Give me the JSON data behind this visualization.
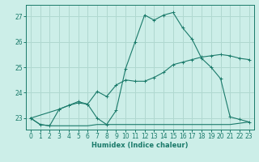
{
  "xlabel": "Humidex (Indice chaleur)",
  "bg_color": "#cceee8",
  "grid_color": "#b0d8d0",
  "line_color": "#1a7a6a",
  "xlim": [
    -0.5,
    23.5
  ],
  "ylim": [
    22.55,
    27.45
  ],
  "xticks": [
    0,
    1,
    2,
    3,
    4,
    5,
    6,
    7,
    8,
    9,
    10,
    11,
    12,
    13,
    14,
    15,
    16,
    17,
    18,
    19,
    20,
    21,
    22,
    23
  ],
  "yticks": [
    23,
    24,
    25,
    26,
    27
  ],
  "s1_x": [
    0,
    1,
    2,
    3,
    4,
    5,
    6,
    7,
    8,
    9,
    10,
    11,
    12,
    13,
    14,
    15,
    16,
    17,
    18,
    19,
    20,
    21,
    22,
    23
  ],
  "s1_y": [
    23.0,
    22.75,
    22.7,
    23.35,
    23.5,
    23.6,
    23.55,
    23.0,
    22.75,
    23.3,
    24.95,
    26.0,
    27.05,
    26.85,
    27.05,
    27.15,
    26.55,
    26.1,
    25.35,
    25.0,
    24.55,
    23.05,
    22.95,
    22.85
  ],
  "s2_x": [
    0,
    3,
    4,
    5,
    6,
    7,
    8,
    9,
    10,
    11,
    12,
    13,
    14,
    15,
    16,
    17,
    18,
    19,
    20,
    21,
    22,
    23
  ],
  "s2_y": [
    23.0,
    23.35,
    23.5,
    23.65,
    23.55,
    24.05,
    23.85,
    24.3,
    24.5,
    24.45,
    24.45,
    24.6,
    24.8,
    25.1,
    25.2,
    25.3,
    25.4,
    25.45,
    25.5,
    25.45,
    25.35,
    25.3
  ],
  "s3_x": [
    0,
    1,
    2,
    3,
    4,
    5,
    6,
    7,
    8,
    9,
    10,
    11,
    12,
    13,
    14,
    15,
    16,
    17,
    18,
    19,
    20,
    21,
    22,
    23
  ],
  "s3_y": [
    23.0,
    22.75,
    22.7,
    22.7,
    22.7,
    22.7,
    22.7,
    22.75,
    22.75,
    22.75,
    22.75,
    22.75,
    22.75,
    22.75,
    22.75,
    22.75,
    22.75,
    22.75,
    22.75,
    22.75,
    22.75,
    22.75,
    22.8,
    22.85
  ]
}
